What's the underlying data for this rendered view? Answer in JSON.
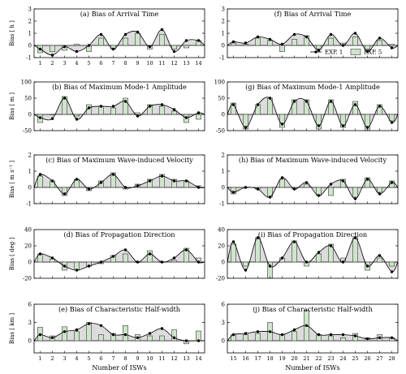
{
  "figure": {
    "legend": {
      "exp1": "EXP. 1",
      "exp5": "EXP. 5"
    },
    "xlabel": "Number of  ISWs"
  },
  "colors": {
    "bar_fill": "#cfe5cb",
    "bar_edge": "#3a3a3a",
    "area_fill": "#dcdcdc",
    "line": "#000000"
  },
  "chart_data": [
    {
      "type": "bar",
      "title": "(a) Bias of Arrival Time",
      "ylabel": "Bias [ h ]",
      "ylim": [
        -1,
        3
      ],
      "yticks": [
        -1,
        0,
        1,
        2,
        3
      ],
      "categories": [
        "1",
        "2",
        "3",
        "4",
        "5",
        "6",
        "7",
        "8",
        "9",
        "10",
        "11",
        "12",
        "13",
        "14"
      ],
      "show_xticks": true,
      "series": [
        {
          "name": "EXP. 1",
          "values": [
            -0.3,
            -0.8,
            -0.1,
            -0.5,
            0.0,
            0.9,
            -0.3,
            0.9,
            1.1,
            -0.1,
            1.3,
            -0.5,
            0.4,
            0.4
          ]
        },
        {
          "name": "EXP. 5",
          "values": [
            -0.6,
            -0.5,
            -0.4,
            0.1,
            -0.5,
            0.6,
            -0.3,
            0.6,
            1.0,
            -0.3,
            0.9,
            -0.3,
            -0.2,
            0.4
          ]
        }
      ]
    },
    {
      "type": "bar",
      "title": "(f) Bias of Arrival Time",
      "ylabel": "",
      "ylim": [
        -1,
        3
      ],
      "yticks": [
        -1,
        0,
        1,
        2,
        3
      ],
      "categories": [
        "15",
        "16",
        "17",
        "18",
        "19",
        "20",
        "21",
        "22",
        "23",
        "24",
        "25",
        "26",
        "27",
        "28"
      ],
      "show_xticks": false,
      "legend": "right",
      "series": [
        {
          "name": "EXP. 1",
          "values": [
            0.3,
            0.2,
            0.7,
            0.5,
            0.1,
            0.9,
            0.7,
            -0.4,
            0.9,
            0.0,
            1.0,
            -0.5,
            0.6,
            -0.2
          ]
        },
        {
          "name": "EXP. 5",
          "values": [
            0.2,
            0.1,
            0.6,
            0.4,
            -0.5,
            0.5,
            0.8,
            -0.3,
            0.6,
            0.2,
            0.7,
            -0.3,
            0.4,
            0.1
          ]
        }
      ]
    },
    {
      "type": "bar",
      "title": "(b) Bias of Maximum Mode-1 Amplitude",
      "ylabel": "Bias [ m ]",
      "ylim": [
        -50,
        100
      ],
      "yticks": [
        -50,
        0,
        50,
        100
      ],
      "categories": [
        "1",
        "2",
        "3",
        "4",
        "5",
        "6",
        "7",
        "8",
        "9",
        "10",
        "11",
        "12",
        "13",
        "14"
      ],
      "show_xticks": false,
      "series": [
        {
          "name": "EXP. 1",
          "values": [
            -10,
            -13,
            50,
            -15,
            20,
            25,
            25,
            40,
            -5,
            25,
            30,
            15,
            -10,
            5
          ]
        },
        {
          "name": "EXP. 5",
          "values": [
            -25,
            0,
            55,
            -5,
            30,
            25,
            20,
            50,
            5,
            30,
            25,
            10,
            -25,
            -15
          ]
        }
      ]
    },
    {
      "type": "bar",
      "title": "(g) Bias of Maximum Mode-1 Amplitude",
      "ylabel": "",
      "ylim": [
        -50,
        100
      ],
      "yticks": [
        -50,
        0,
        50,
        100
      ],
      "categories": [
        "15",
        "16",
        "17",
        "18",
        "19",
        "20",
        "21",
        "22",
        "23",
        "24",
        "25",
        "26",
        "27",
        "28"
      ],
      "show_xticks": false,
      "series": [
        {
          "name": "EXP. 1",
          "values": [
            30,
            -40,
            30,
            50,
            -30,
            40,
            40,
            -35,
            40,
            -35,
            30,
            -40,
            25,
            -25
          ]
        },
        {
          "name": "EXP. 5",
          "values": [
            35,
            -45,
            30,
            50,
            -40,
            45,
            45,
            -45,
            45,
            -40,
            40,
            -50,
            30,
            -20
          ]
        }
      ]
    },
    {
      "type": "bar",
      "title": "(c) Bias of Maximum Wave-induced Velocity",
      "ylabel": "Bias [ m s⁻¹ ]",
      "ylim": [
        -1,
        2
      ],
      "yticks": [
        -1,
        0,
        1,
        2
      ],
      "categories": [
        "1",
        "2",
        "3",
        "4",
        "5",
        "6",
        "7",
        "8",
        "9",
        "10",
        "11",
        "12",
        "13",
        "14"
      ],
      "show_xticks": false,
      "series": [
        {
          "name": "EXP. 1",
          "values": [
            0.8,
            0.4,
            -0.4,
            0.5,
            -0.1,
            0.3,
            0.8,
            0.0,
            0.1,
            0.4,
            0.7,
            0.4,
            0.4,
            0.0
          ]
        },
        {
          "name": "EXP. 5",
          "values": [
            0.7,
            0.4,
            -0.5,
            0.5,
            -0.2,
            0.4,
            0.9,
            -0.1,
            0.2,
            0.5,
            0.8,
            0.5,
            0.4,
            0.1
          ]
        }
      ]
    },
    {
      "type": "bar",
      "title": "(h) Bias of Maximum Wave-induced Velocity",
      "ylabel": "",
      "ylim": [
        -1,
        2
      ],
      "yticks": [
        -1,
        0,
        1,
        2
      ],
      "categories": [
        "15",
        "16",
        "17",
        "18",
        "19",
        "20",
        "21",
        "22",
        "23",
        "24",
        "25",
        "26",
        "27",
        "28"
      ],
      "show_xticks": false,
      "series": [
        {
          "name": "EXP. 1",
          "values": [
            -0.3,
            0.0,
            -0.1,
            -0.6,
            0.6,
            -0.1,
            0.3,
            -0.5,
            0.2,
            0.4,
            -0.7,
            0.5,
            -0.4,
            0.3
          ]
        },
        {
          "name": "EXP. 5",
          "values": [
            -0.4,
            0.0,
            -0.1,
            -0.6,
            0.5,
            -0.1,
            0.2,
            -0.5,
            -0.5,
            0.5,
            -0.6,
            0.6,
            -0.3,
            0.4
          ]
        }
      ]
    },
    {
      "type": "bar",
      "title": "(d) Bias of Propagation Direction",
      "ylabel": "Bias [ deg ]",
      "ylim": [
        -20,
        40
      ],
      "yticks": [
        -20,
        0,
        20,
        40
      ],
      "categories": [
        "1",
        "2",
        "3",
        "4",
        "5",
        "6",
        "7",
        "8",
        "9",
        "10",
        "11",
        "12",
        "13",
        "14"
      ],
      "show_xticks": false,
      "series": [
        {
          "name": "EXP. 1",
          "values": [
            10,
            5,
            -5,
            -10,
            -5,
            0,
            7,
            15,
            0,
            10,
            0,
            5,
            15,
            0
          ]
        },
        {
          "name": "EXP. 5",
          "values": [
            10,
            4,
            -10,
            -10,
            -5,
            -2,
            8,
            10,
            0,
            14,
            0,
            2,
            17,
            5
          ]
        }
      ]
    },
    {
      "type": "bar",
      "title": "(i) Bias of Propagation Direction",
      "ylabel": "",
      "ylim": [
        -20,
        40
      ],
      "yticks": [
        -20,
        0,
        20,
        40
      ],
      "categories": [
        "15",
        "16",
        "17",
        "18",
        "19",
        "20",
        "21",
        "22",
        "23",
        "24",
        "25",
        "26",
        "27",
        "28"
      ],
      "show_xticks": false,
      "series": [
        {
          "name": "EXP. 1",
          "values": [
            25,
            -10,
            30,
            -5,
            5,
            25,
            0,
            12,
            20,
            0,
            30,
            -5,
            8,
            -12
          ]
        },
        {
          "name": "EXP. 5",
          "values": [
            22,
            -5,
            30,
            -20,
            5,
            26,
            -5,
            10,
            22,
            5,
            30,
            -10,
            5,
            -5
          ]
        }
      ]
    },
    {
      "type": "bar",
      "title": "(e) Bias of Characteristic Half-width",
      "ylabel": "Bias [ km ]",
      "ylim": [
        -2,
        6
      ],
      "yticks": [
        0,
        3,
        6
      ],
      "categories": [
        "1",
        "2",
        "3",
        "4",
        "5",
        "6",
        "7",
        "8",
        "9",
        "10",
        "11",
        "12",
        "13",
        "14"
      ],
      "show_xticks": true,
      "series": [
        {
          "name": "EXP. 1",
          "values": [
            1.0,
            0.5,
            1.5,
            1.8,
            2.8,
            2.5,
            1.0,
            1.0,
            0.5,
            1.2,
            2.0,
            0.5,
            0.0,
            0.0
          ]
        },
        {
          "name": "EXP. 5",
          "values": [
            2.2,
            0.8,
            2.3,
            1.5,
            3.0,
            1.0,
            1.2,
            2.5,
            1.0,
            0.8,
            0.8,
            1.8,
            -0.5,
            1.6
          ]
        }
      ]
    },
    {
      "type": "bar",
      "title": "(j) Bias of Characteristic Half-width",
      "ylabel": "",
      "ylim": [
        -2,
        6
      ],
      "yticks": [
        0,
        3,
        6
      ],
      "categories": [
        "15",
        "16",
        "17",
        "18",
        "19",
        "20",
        "21",
        "22",
        "23",
        "24",
        "25",
        "26",
        "27",
        "28"
      ],
      "show_xticks": true,
      "series": [
        {
          "name": "EXP. 1",
          "values": [
            1.0,
            1.2,
            1.5,
            1.5,
            1.0,
            1.8,
            2.5,
            1.0,
            1.0,
            1.0,
            0.8,
            0.3,
            0.5,
            0.5
          ]
        },
        {
          "name": "EXP. 5",
          "values": [
            1.0,
            1.0,
            1.2,
            3.0,
            1.0,
            1.5,
            5.0,
            1.0,
            0.8,
            0.5,
            1.2,
            0.5,
            1.0,
            0.5
          ]
        }
      ]
    }
  ]
}
